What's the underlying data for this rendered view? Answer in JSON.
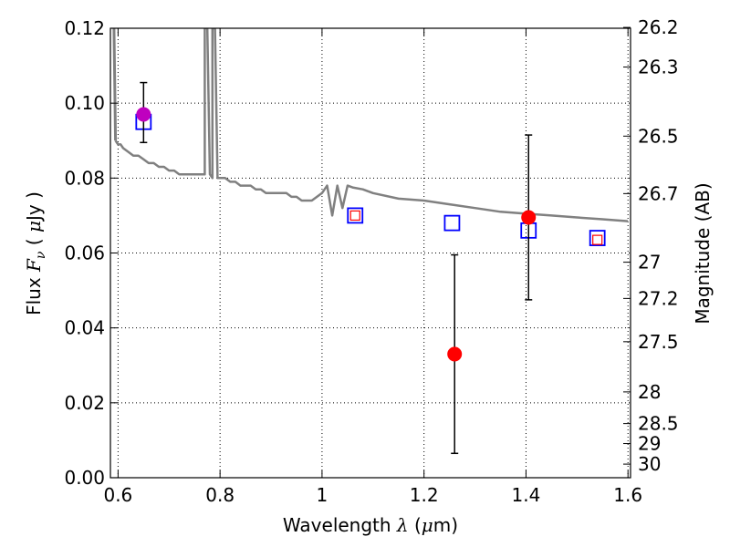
{
  "chart_data": {
    "type": "scatter",
    "x_label": {
      "prefix": "Wavelength  ",
      "symbol": "λ",
      "unit_open": " (",
      "unit_mu": "μ",
      "unit_rest": "m)"
    },
    "y_label": {
      "prefix": "Flux  ",
      "symbol": "F",
      "sub": "ν",
      "unit_open": "  ( ",
      "unit_mu": "μ",
      "unit_rest": "Jy )"
    },
    "y2_label": "Magnitude (AB)",
    "xlim": [
      0.585,
      1.605
    ],
    "ylim": [
      0.0,
      0.12
    ],
    "x_ticks": [
      {
        "value": 0.6,
        "label": "0.6"
      },
      {
        "value": 0.8,
        "label": "0.8"
      },
      {
        "value": 1.0,
        "label": "1"
      },
      {
        "value": 1.2,
        "label": "1.2"
      },
      {
        "value": 1.4,
        "label": "1.4"
      },
      {
        "value": 1.6,
        "label": "1.6"
      }
    ],
    "y_ticks": [
      {
        "value": 0.0,
        "label": "0.00"
      },
      {
        "value": 0.02,
        "label": "0.02"
      },
      {
        "value": 0.04,
        "label": "0.04"
      },
      {
        "value": 0.06,
        "label": "0.06"
      },
      {
        "value": 0.08,
        "label": "0.08"
      },
      {
        "value": 0.1,
        "label": "0.10"
      },
      {
        "value": 0.12,
        "label": "0.12"
      }
    ],
    "magnitude_ticks": [
      "26.2",
      "26.3",
      "26.5",
      "26.7",
      "27",
      "27.2",
      "27.5",
      "28",
      "28.5",
      "29",
      "30"
    ],
    "grid": true,
    "sed_model": {
      "color": "#808080",
      "x": [
        0.595,
        0.6,
        0.605,
        0.61,
        0.62,
        0.63,
        0.64,
        0.65,
        0.66,
        0.67,
        0.68,
        0.69,
        0.7,
        0.71,
        0.72,
        0.73,
        0.74,
        0.75,
        0.76,
        0.765,
        0.77,
        0.77,
        0.775,
        0.78,
        0.785,
        0.785,
        0.79,
        0.795,
        0.8,
        0.81,
        0.82,
        0.83,
        0.84,
        0.85,
        0.86,
        0.87,
        0.88,
        0.89,
        0.9,
        0.91,
        0.92,
        0.93,
        0.94,
        0.95,
        0.96,
        0.97,
        0.98,
        0.99,
        1.0,
        1.01,
        1.02,
        1.03,
        1.04,
        1.05,
        1.06,
        1.08,
        1.1,
        1.15,
        1.2,
        1.25,
        1.3,
        1.35,
        1.4,
        1.45,
        1.5,
        1.55,
        1.6
      ],
      "y": [
        0.09,
        0.089,
        0.089,
        0.088,
        0.087,
        0.086,
        0.086,
        0.085,
        0.084,
        0.084,
        0.083,
        0.083,
        0.082,
        0.082,
        0.081,
        0.081,
        0.081,
        0.081,
        0.081,
        0.081,
        0.081,
        0.12,
        0.12,
        0.081,
        0.08,
        0.12,
        0.12,
        0.08,
        0.08,
        0.08,
        0.079,
        0.079,
        0.078,
        0.078,
        0.078,
        0.077,
        0.077,
        0.076,
        0.076,
        0.076,
        0.076,
        0.076,
        0.075,
        0.075,
        0.074,
        0.074,
        0.074,
        0.075,
        0.076,
        0.078,
        0.07,
        0.078,
        0.072,
        0.078,
        0.0775,
        0.077,
        0.076,
        0.0745,
        0.074,
        0.073,
        0.072,
        0.071,
        0.0705,
        0.07,
        0.0695,
        0.069,
        0.0685
      ]
    },
    "model_photometry": {
      "marker": "open-square",
      "color": "#0000ff",
      "points": [
        {
          "x": 0.65,
          "y": 0.095
        },
        {
          "x": 1.065,
          "y": 0.07
        },
        {
          "x": 1.255,
          "y": 0.068
        },
        {
          "x": 1.405,
          "y": 0.066
        },
        {
          "x": 1.54,
          "y": 0.064
        }
      ]
    },
    "small_squares": {
      "marker": "open-square-small",
      "color": "#ff0000",
      "points": [
        {
          "x": 1.065,
          "y": 0.07
        },
        {
          "x": 1.54,
          "y": 0.0635
        }
      ]
    },
    "observed": {
      "marker": "filled-circle",
      "points": [
        {
          "x": 0.65,
          "y": 0.097,
          "err_low": 0.0895,
          "err_high": 0.1055,
          "color": "#bf00bf"
        },
        {
          "x": 1.26,
          "y": 0.033,
          "err_low": 0.0065,
          "err_high": 0.0595,
          "color": "#ff0000"
        },
        {
          "x": 1.405,
          "y": 0.0695,
          "err_low": 0.0475,
          "err_high": 0.0915,
          "color": "#ff0000"
        }
      ]
    }
  }
}
